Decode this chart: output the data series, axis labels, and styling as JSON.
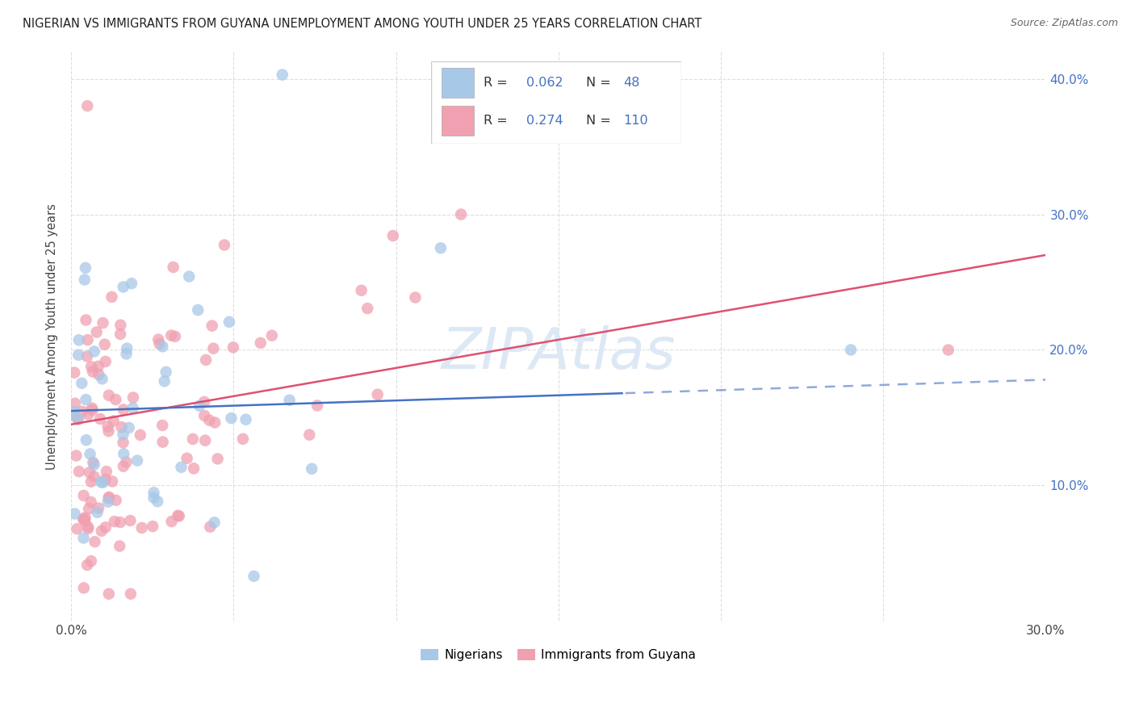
{
  "title": "NIGERIAN VS IMMIGRANTS FROM GUYANA UNEMPLOYMENT AMONG YOUTH UNDER 25 YEARS CORRELATION CHART",
  "source": "Source: ZipAtlas.com",
  "ylabel": "Unemployment Among Youth under 25 years",
  "xlim": [
    0.0,
    0.3
  ],
  "ylim": [
    0.0,
    0.42
  ],
  "xtick_positions": [
    0.0,
    0.05,
    0.1,
    0.15,
    0.2,
    0.25,
    0.3
  ],
  "xticklabels": [
    "0.0%",
    "",
    "",
    "",
    "",
    "",
    "30.0%"
  ],
  "ytick_positions": [
    0.0,
    0.1,
    0.2,
    0.3,
    0.4
  ],
  "ytick_right_positions": [
    0.1,
    0.2,
    0.3,
    0.4
  ],
  "ytick_right_labels": [
    "10.0%",
    "20.0%",
    "30.0%",
    "40.0%"
  ],
  "background_color": "#ffffff",
  "grid_color": "#d0d0d0",
  "blue_color": "#a8c8e8",
  "pink_color": "#f0a0b0",
  "blue_line_color": "#4472c4",
  "pink_line_color": "#e05070",
  "right_axis_color": "#4472c4",
  "legend_R_color": "#4472c4",
  "R_blue": 0.062,
  "N_blue": 48,
  "R_pink": 0.274,
  "N_pink": 110,
  "legend_label_blue": "Nigerians",
  "legend_label_pink": "Immigrants from Guyana",
  "blue_trend_start_x": 0.0,
  "blue_trend_end_solid_x": 0.17,
  "blue_trend_start_y": 0.155,
  "blue_trend_end_y": 0.178,
  "pink_trend_start_x": 0.0,
  "pink_trend_end_x": 0.3,
  "pink_trend_start_y": 0.145,
  "pink_trend_end_y": 0.27,
  "watermark_text": "ZIPAtlas",
  "watermark_color": "#dce8f5",
  "dot_size": 110,
  "dot_alpha": 0.75
}
